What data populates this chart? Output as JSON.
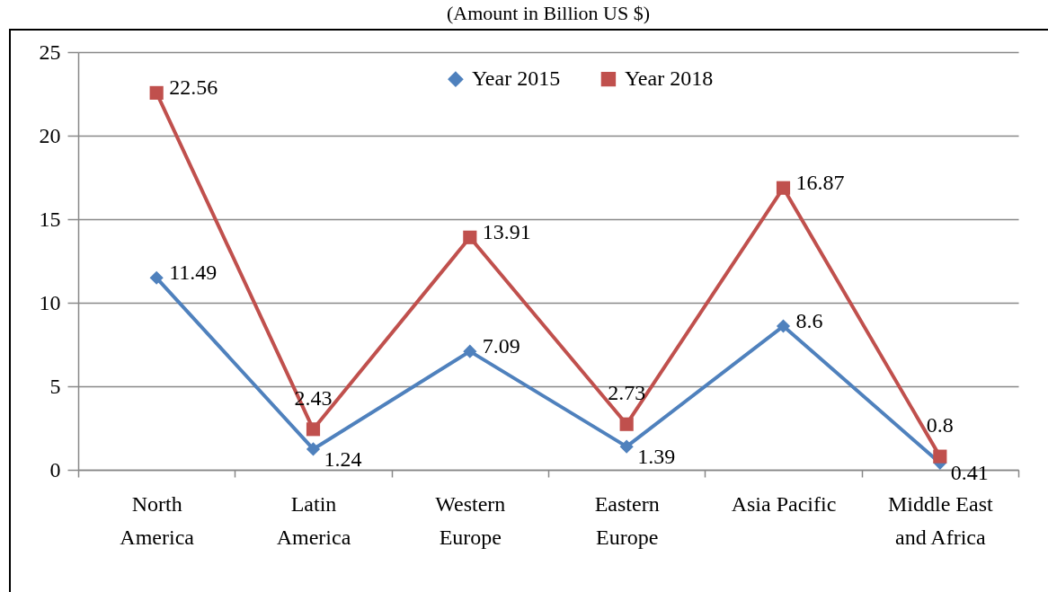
{
  "chart_data": {
    "type": "line",
    "title": "(Amount in Billion US $)",
    "categories": [
      "North America",
      "Latin America",
      "Western Europe",
      "Eastern Europe",
      "Asia Pacific",
      "Middle East and Africa"
    ],
    "series": [
      {
        "name": "Year 2015",
        "color": "#4f81bd",
        "marker": "diamond",
        "values": [
          11.49,
          1.24,
          7.09,
          1.39,
          8.6,
          0.41
        ]
      },
      {
        "name": "Year 2018",
        "color": "#c0504d",
        "marker": "square",
        "values": [
          22.56,
          2.43,
          13.91,
          2.73,
          16.87,
          0.8
        ]
      }
    ],
    "ylim": [
      0,
      25
    ],
    "yticks": [
      0,
      5,
      10,
      15,
      20,
      25
    ],
    "grid": "y",
    "legend": "top",
    "data_labels": true,
    "line_style": "solid"
  }
}
